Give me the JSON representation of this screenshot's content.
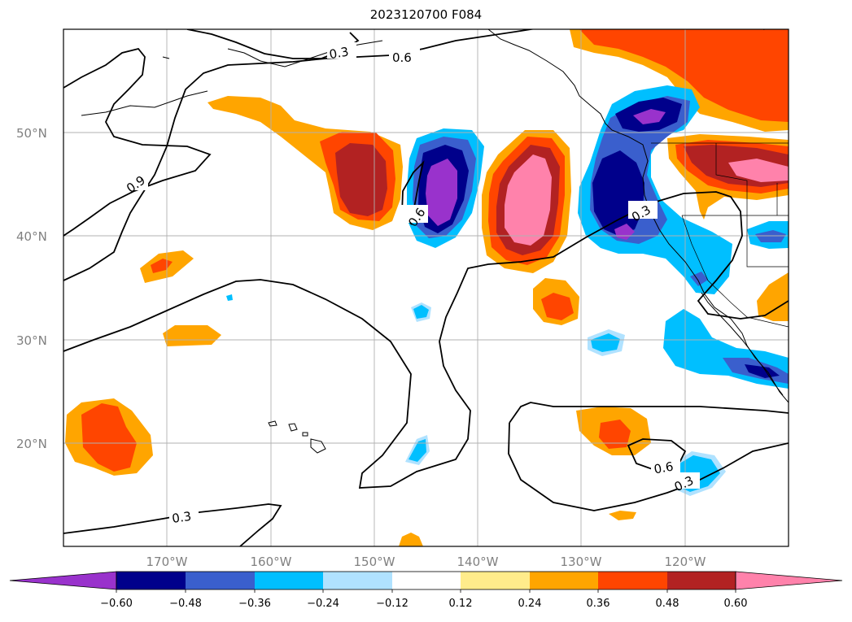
{
  "title": "2023120700 F084",
  "map": {
    "lon_ticks": [
      "170°W",
      "160°W",
      "150°W",
      "140°W",
      "130°W",
      "120°W"
    ],
    "lat_ticks": [
      "50°N",
      "40°N",
      "30°N",
      "20°N"
    ],
    "grid": true,
    "contour_labels": [
      "0.9",
      "0.6",
      "0.3",
      "0.6",
      "0.3",
      "0.6",
      "0.3",
      "0.3"
    ]
  },
  "colorbar": {
    "orientation": "horizontal",
    "extend": "both",
    "ticks": [
      "−0.60",
      "−0.48",
      "−0.36",
      "−0.24",
      "−0.12",
      "0.12",
      "0.24",
      "0.36",
      "0.48",
      "0.60"
    ],
    "colors": [
      "#9932cc",
      "#00008b",
      "#3a5fcd",
      "#00bfff",
      "#b0e2ff",
      "#ffffff",
      "#ffec8b",
      "#ffa500",
      "#ff4500",
      "#b22222",
      "#ff82ab"
    ]
  }
}
